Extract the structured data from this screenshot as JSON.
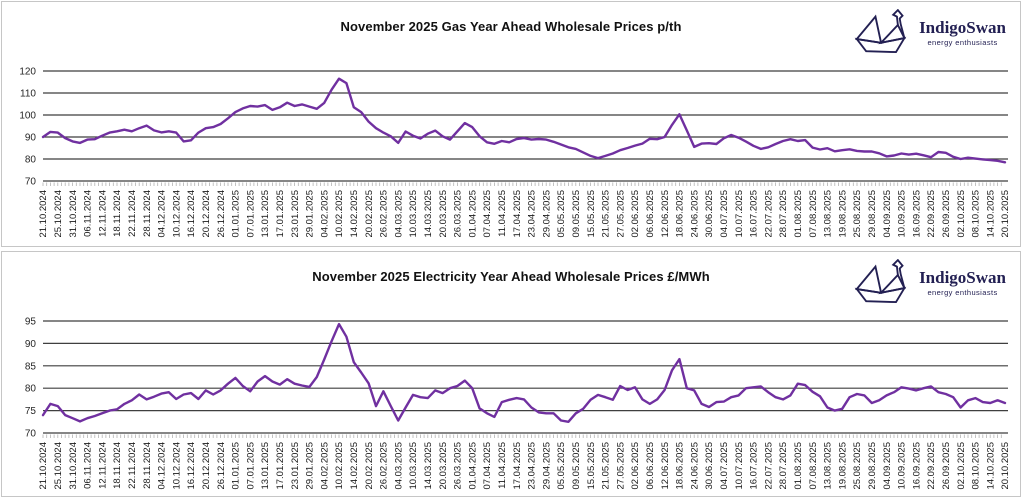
{
  "page": {
    "background": "#ffffff",
    "panel_border": "#c6c6c6",
    "gridline_color": "#3f3f3f",
    "tickmark_color": "#b3b3b3",
    "axis_label_color": "#1a1a1a"
  },
  "logo": {
    "name": "IndigoSwan",
    "tagline": "energy enthusiasts",
    "color": "#232053",
    "icon": "origami-swan"
  },
  "chart_data": [
    {
      "type": "line",
      "title": "November 2025 Gas Year Ahead Wholesale Prices p/th",
      "xlabel": "",
      "ylabel": "p/th",
      "ylim": [
        70,
        120
      ],
      "yticks": [
        120,
        110,
        100,
        90,
        80,
        70
      ],
      "grid": true,
      "legend_position": "none",
      "line_color": "#7030A0",
      "note": "values[2k] falls on categories[k] date; odd indices are midpoints between labelled dates",
      "categories": [
        "21.10.2024",
        "25.10.2024",
        "31.10.2024",
        "06.11.2024",
        "12.11.2024",
        "18.11.2024",
        "22.11.2024",
        "28.11.2024",
        "04.12.2024",
        "10.12.2024",
        "16.12.2024",
        "20.12.2024",
        "26.12.2024",
        "01.01.2025",
        "07.01.2025",
        "13.01.2025",
        "17.01.2025",
        "23.01.2025",
        "29.01.2025",
        "04.02.2025",
        "10.02.2025",
        "14.02.2025",
        "20.02.2025",
        "26.02.2025",
        "04.03.2025",
        "10.03.2025",
        "14.03.2025",
        "20.03.2025",
        "26.03.2025",
        "01.04.2025",
        "07.04.2025",
        "11.04.2025",
        "17.04.2025",
        "23.04.2025",
        "29.04.2025",
        "05.05.2025",
        "09.05.2025",
        "15.05.2025",
        "21.05.2025",
        "27.05.2025",
        "02.06.2025",
        "06.06.2025",
        "12.06.2025",
        "18.06.2025",
        "24.06.2025",
        "30.06.2025",
        "04.07.2025",
        "10.07.2025",
        "16.07.2025",
        "22.07.2025",
        "28.07.2025",
        "01.08.2025",
        "07.08.2025",
        "13.08.2025",
        "19.08.2025",
        "25.08.2025",
        "29.08.2025",
        "04.09.2025",
        "10.09.2025",
        "16.09.2025",
        "22.09.2025",
        "26.09.2025",
        "02.10.2025",
        "08.10.2025",
        "14.10.2025",
        "20.10.2025"
      ],
      "values": [
        90.0,
        92.3,
        92.0,
        89.5,
        88.0,
        87.3,
        88.8,
        89.0,
        90.6,
        92.0,
        92.6,
        93.3,
        92.6,
        94.0,
        95.2,
        93.0,
        92.1,
        92.6,
        92.0,
        88.0,
        88.5,
        92.0,
        94.0,
        94.5,
        95.9,
        98.5,
        101.3,
        103.0,
        104.1,
        103.8,
        104.5,
        102.3,
        103.5,
        105.6,
        104.1,
        104.8,
        103.8,
        102.8,
        105.5,
        111.5,
        116.5,
        114.5,
        103.5,
        101.3,
        97.0,
        94.0,
        92.0,
        90.3,
        87.3,
        92.5,
        90.6,
        89.3,
        91.5,
        92.9,
        90.3,
        88.8,
        92.6,
        96.3,
        94.5,
        90.3,
        87.6,
        86.9,
        88.2,
        87.6,
        89.1,
        89.5,
        88.8,
        89.1,
        88.8,
        87.8,
        86.6,
        85.3,
        84.6,
        83.0,
        81.4,
        80.4,
        81.4,
        82.5,
        84.0,
        85.0,
        86.1,
        87.0,
        89.2,
        89.0,
        90.0,
        95.5,
        100.3,
        93.0,
        85.5,
        87.0,
        87.2,
        86.8,
        89.4,
        90.9,
        89.7,
        87.9,
        86.0,
        84.6,
        85.3,
        86.8,
        88.2,
        89.0,
        88.2,
        88.6,
        85.2,
        84.3,
        84.9,
        83.5,
        84.0,
        84.4,
        83.7,
        83.4,
        83.4,
        82.6,
        81.2,
        81.6,
        82.5,
        82.0,
        82.4,
        81.7,
        80.8,
        83.2,
        82.8,
        81.0,
        80.0,
        80.6,
        80.2,
        79.8,
        79.5,
        79.2,
        78.5
      ]
    },
    {
      "type": "line",
      "title": "November 2025 Electricity Year Ahead Wholesale Prices £/MWh",
      "xlabel": "",
      "ylabel": "£/MWh",
      "ylim": [
        70,
        95
      ],
      "yticks": [
        95,
        90,
        85,
        80,
        75,
        70
      ],
      "grid": true,
      "legend_position": "none",
      "line_color": "#7030A0",
      "note": "values[2k] falls on categories[k] date; odd indices are midpoints between labelled dates",
      "categories": [
        "21.10.2024",
        "25.10.2024",
        "31.10.2024",
        "06.11.2024",
        "12.11.2024",
        "18.11.2024",
        "22.11.2024",
        "28.11.2024",
        "04.12.2024",
        "10.12.2024",
        "16.12.2024",
        "20.12.2024",
        "26.12.2024",
        "01.01.2025",
        "07.01.2025",
        "13.01.2025",
        "17.01.2025",
        "23.01.2025",
        "29.01.2025",
        "04.02.2025",
        "10.02.2025",
        "14.02.2025",
        "20.02.2025",
        "26.02.2025",
        "04.03.2025",
        "10.03.2025",
        "14.03.2025",
        "20.03.2025",
        "26.03.2025",
        "01.04.2025",
        "07.04.2025",
        "11.04.2025",
        "17.04.2025",
        "23.04.2025",
        "29.04.2025",
        "05.05.2025",
        "09.05.2025",
        "15.05.2025",
        "21.05.2025",
        "27.05.2025",
        "02.06.2025",
        "06.06.2025",
        "12.06.2025",
        "18.06.2025",
        "24.06.2025",
        "30.06.2025",
        "04.07.2025",
        "10.07.2025",
        "16.07.2025",
        "22.07.2025",
        "28.07.2025",
        "01.08.2025",
        "07.08.2025",
        "13.08.2025",
        "19.08.2025",
        "25.08.2025",
        "29.08.2025",
        "04.09.2025",
        "10.09.2025",
        "16.09.2025",
        "22.09.2025",
        "26.09.2025",
        "02.10.2025",
        "08.10.2025",
        "14.10.2025",
        "20.10.2025"
      ],
      "values": [
        74.0,
        76.5,
        76.0,
        74.0,
        73.3,
        72.6,
        73.3,
        73.8,
        74.4,
        75.0,
        75.3,
        76.5,
        77.3,
        78.6,
        77.5,
        78.1,
        78.8,
        79.1,
        77.6,
        78.6,
        78.9,
        77.6,
        79.5,
        78.6,
        79.5,
        81.0,
        82.3,
        80.5,
        79.3,
        81.5,
        82.7,
        81.5,
        80.8,
        82.0,
        81.0,
        80.6,
        80.3,
        82.5,
        86.4,
        90.5,
        94.3,
        91.5,
        85.8,
        83.5,
        81.1,
        76.0,
        79.3,
        76.0,
        72.8,
        75.7,
        78.5,
        78.0,
        77.8,
        79.5,
        78.9,
        80.0,
        80.5,
        81.7,
        80.0,
        75.5,
        74.4,
        73.6,
        76.9,
        77.4,
        77.8,
        77.5,
        75.7,
        74.6,
        74.4,
        74.4,
        72.8,
        72.5,
        74.4,
        75.4,
        77.4,
        78.5,
        78.0,
        77.4,
        80.5,
        79.6,
        80.2,
        77.5,
        76.5,
        77.5,
        79.6,
        84.0,
        86.5,
        80.0,
        79.5,
        76.5,
        75.8,
        76.9,
        77.0,
        78.0,
        78.4,
        80.0,
        80.2,
        80.4,
        79.1,
        78.0,
        77.5,
        78.4,
        81.0,
        80.7,
        79.2,
        78.2,
        75.7,
        75.0,
        75.4,
        78.0,
        78.7,
        78.4,
        76.7,
        77.3,
        78.4,
        79.1,
        80.2,
        79.9,
        79.5,
        80.0,
        80.4,
        79.1,
        78.7,
        78.0,
        75.7,
        77.3,
        77.8,
        76.9,
        76.7,
        77.3,
        76.7
      ]
    }
  ]
}
